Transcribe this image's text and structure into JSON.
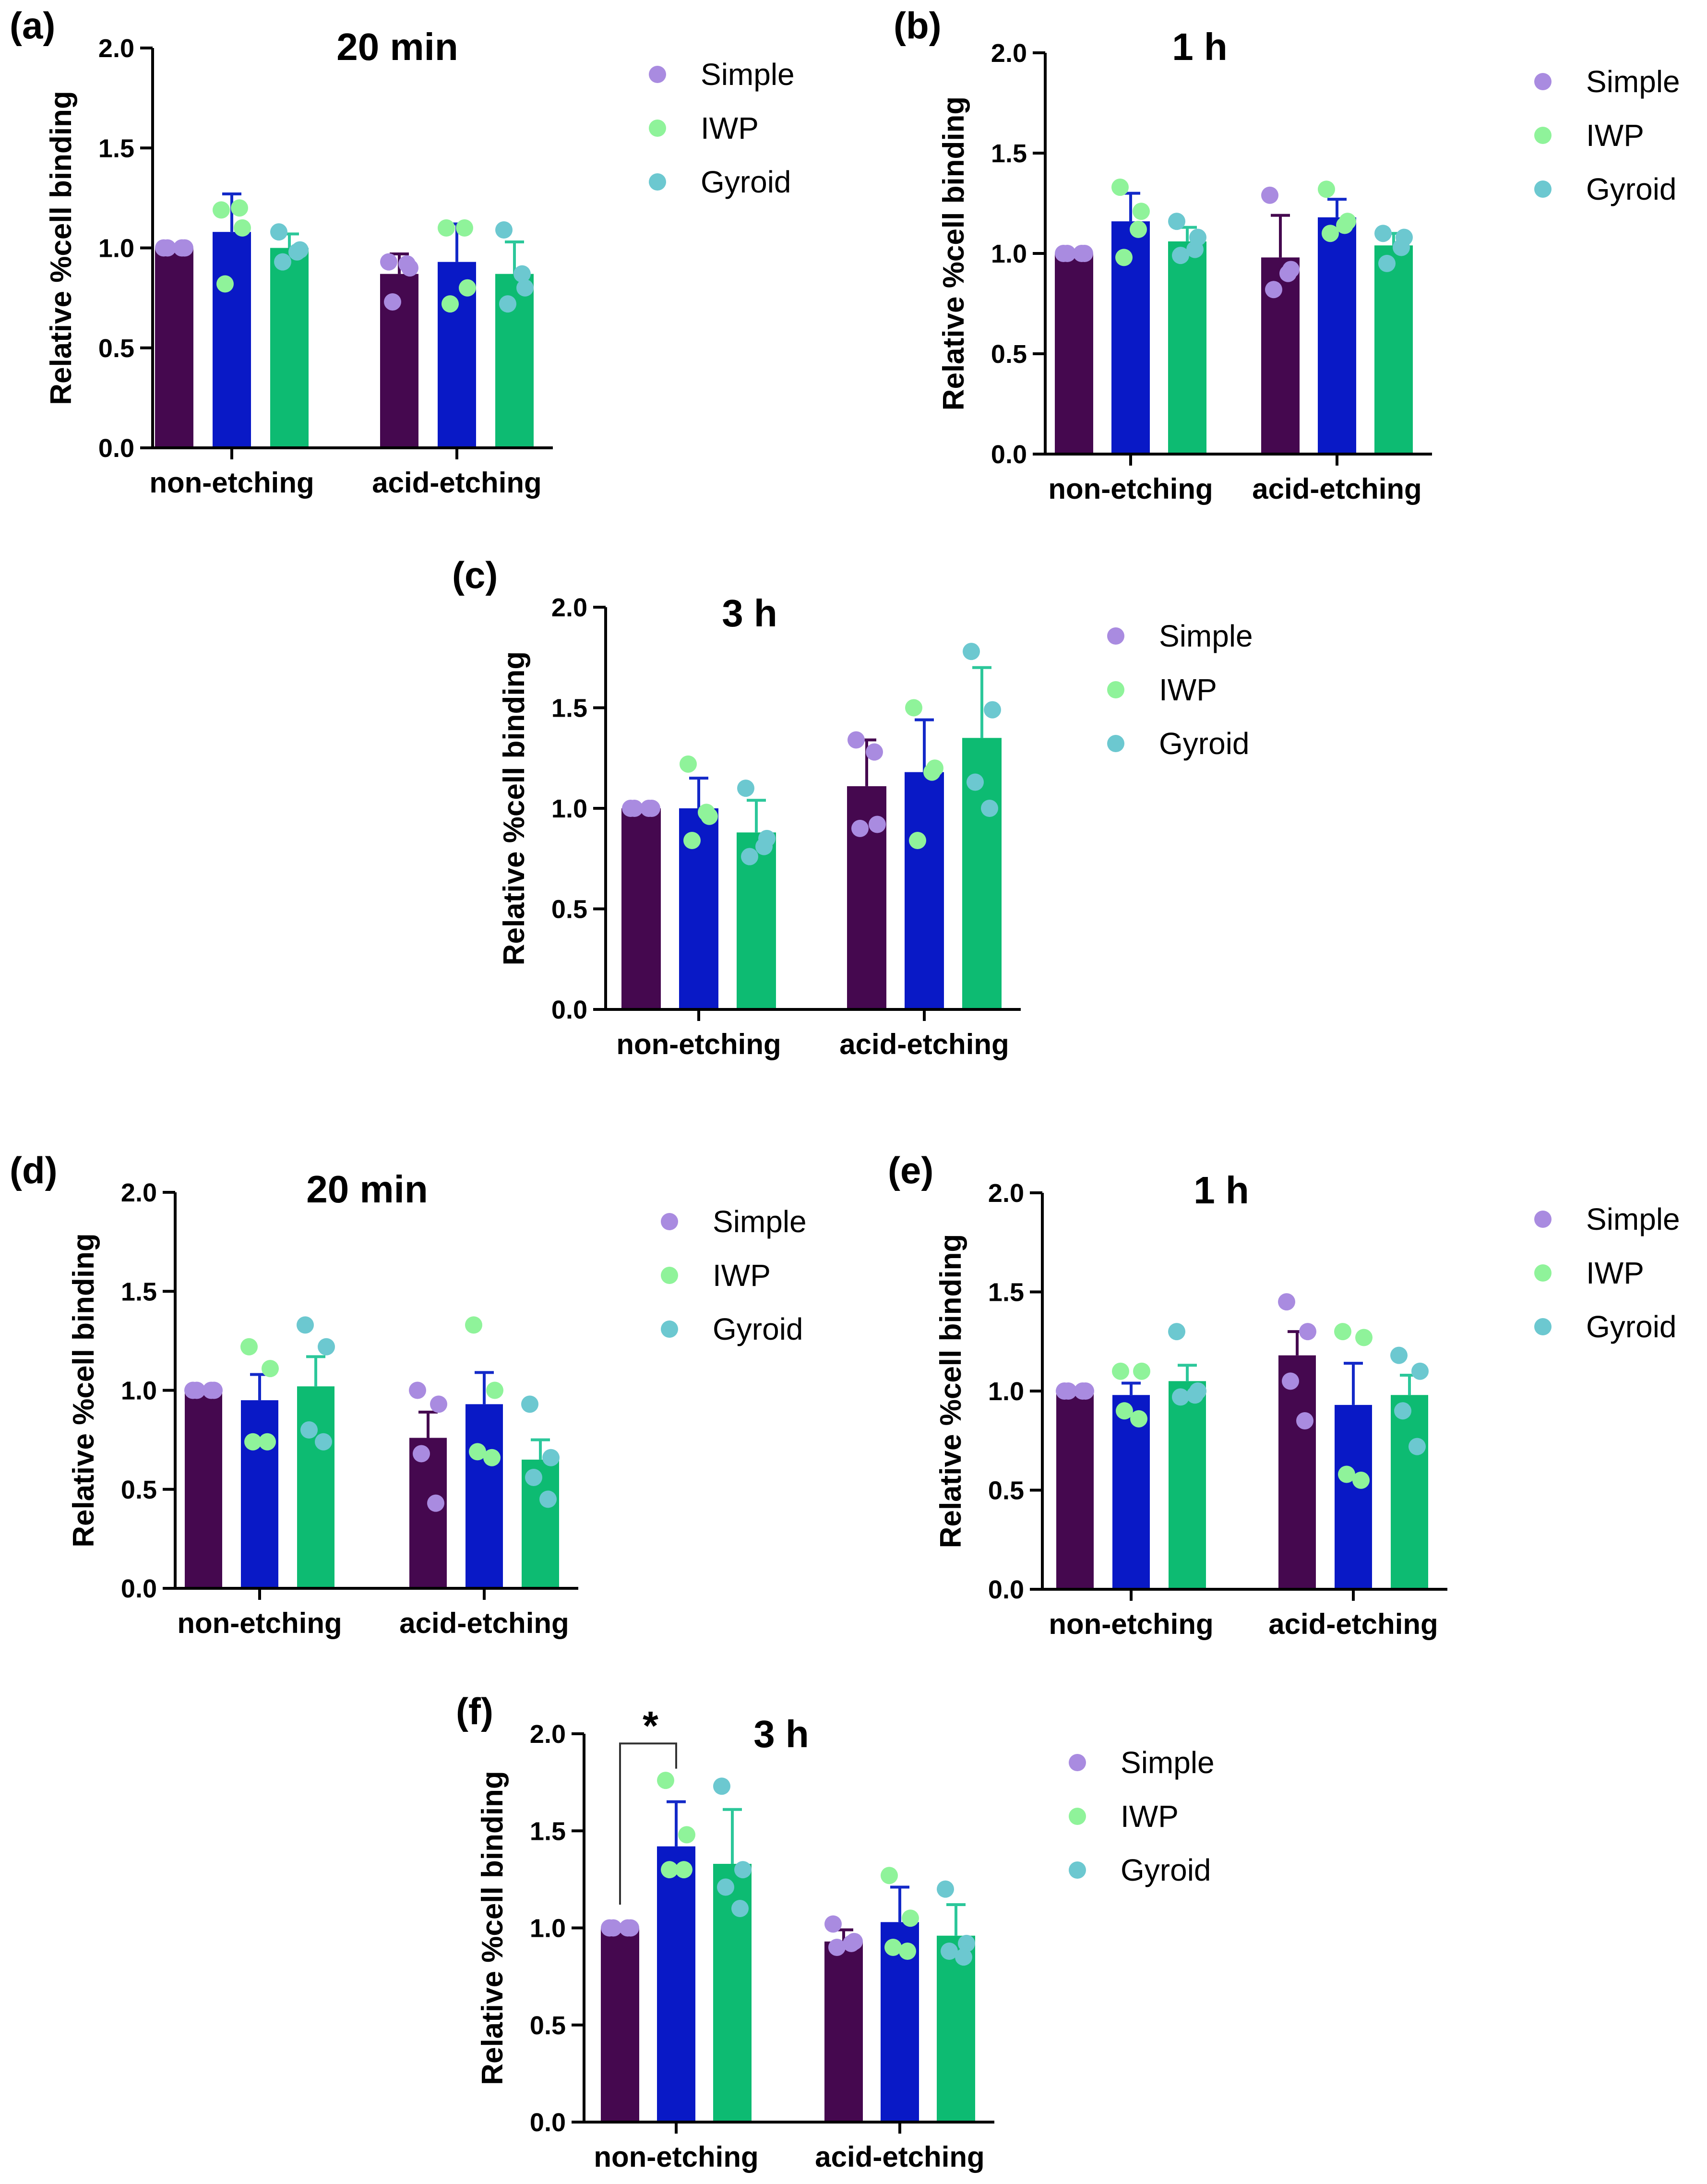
{
  "chart_data": [
    {
      "type": "bar",
      "panel": "(a)",
      "title": "20 min",
      "ylabel": "Relative %cell binding",
      "xlabel": "",
      "ylim": [
        0,
        2.0
      ],
      "yticks": [
        "0.0",
        "0.5",
        "1.0",
        "1.5",
        "2.0"
      ],
      "categories": [
        "non-etching",
        "acid-etching"
      ],
      "series": [
        {
          "name": "Simple",
          "values": [
            1.0,
            0.87
          ],
          "errors": [
            0.0,
            0.1
          ],
          "points": [
            [
              1.0,
              1.0,
              1.0,
              1.0
            ],
            [
              0.93,
              0.9,
              0.73,
              0.92
            ]
          ]
        },
        {
          "name": "IWP",
          "values": [
            1.08,
            0.93
          ],
          "errors": [
            0.19,
            0.19
          ],
          "points": [
            [
              1.19,
              1.1,
              0.82,
              1.2
            ],
            [
              1.1,
              0.8,
              0.72,
              1.1
            ]
          ]
        },
        {
          "name": "Gyroid",
          "values": [
            1.0,
            0.87
          ],
          "errors": [
            0.07,
            0.16
          ],
          "points": [
            [
              1.08,
              0.99,
              0.93,
              0.98
            ],
            [
              1.09,
              0.8,
              0.72,
              0.87
            ]
          ]
        }
      ],
      "significance": []
    },
    {
      "type": "bar",
      "panel": "(b)",
      "title": "1 h",
      "ylabel": "Relative %cell binding",
      "xlabel": "",
      "ylim": [
        0,
        2.0
      ],
      "yticks": [
        "0.0",
        "0.5",
        "1.0",
        "1.5",
        "2.0"
      ],
      "categories": [
        "non-etching",
        "acid-etching"
      ],
      "series": [
        {
          "name": "Simple",
          "values": [
            1.0,
            0.98
          ],
          "errors": [
            0.0,
            0.21
          ],
          "points": [
            [
              1.0,
              1.0,
              1.0,
              1.0
            ],
            [
              1.29,
              0.92,
              0.82,
              0.9
            ]
          ]
        },
        {
          "name": "IWP",
          "values": [
            1.16,
            1.18
          ],
          "errors": [
            0.14,
            0.09
          ],
          "points": [
            [
              1.33,
              1.21,
              0.98,
              1.12
            ],
            [
              1.32,
              1.16,
              1.1,
              1.14
            ]
          ]
        },
        {
          "name": "Gyroid",
          "values": [
            1.06,
            1.04
          ],
          "errors": [
            0.07,
            0.06
          ],
          "points": [
            [
              1.16,
              1.08,
              0.99,
              1.02
            ],
            [
              1.1,
              1.08,
              0.95,
              1.03
            ]
          ]
        }
      ],
      "significance": []
    },
    {
      "type": "bar",
      "panel": "(c)",
      "title": "3 h",
      "ylabel": "Relative %cell binding",
      "xlabel": "",
      "ylim": [
        0,
        2.0
      ],
      "yticks": [
        "0.0",
        "0.5",
        "1.0",
        "1.5",
        "2.0"
      ],
      "categories": [
        "non-etching",
        "acid-etching"
      ],
      "series": [
        {
          "name": "Simple",
          "values": [
            1.0,
            1.11
          ],
          "errors": [
            0.0,
            0.23
          ],
          "points": [
            [
              1.0,
              1.0,
              1.0,
              1.0
            ],
            [
              1.34,
              0.92,
              0.9,
              1.28
            ]
          ]
        },
        {
          "name": "IWP",
          "values": [
            1.0,
            1.18
          ],
          "errors": [
            0.15,
            0.26
          ],
          "points": [
            [
              1.22,
              0.96,
              0.84,
              0.98
            ],
            [
              1.5,
              1.2,
              0.84,
              1.18
            ]
          ]
        },
        {
          "name": "Gyroid",
          "values": [
            0.88,
            1.35
          ],
          "errors": [
            0.16,
            0.35
          ],
          "points": [
            [
              1.1,
              0.85,
              0.76,
              0.81
            ],
            [
              1.78,
              1.49,
              1.13,
              1.0
            ]
          ]
        }
      ],
      "significance": []
    },
    {
      "type": "bar",
      "panel": "(d)",
      "title": "20 min",
      "ylabel": "Relative %cell binding",
      "xlabel": "",
      "ylim": [
        0,
        2.0
      ],
      "yticks": [
        "0.0",
        "0.5",
        "1.0",
        "1.5",
        "2.0"
      ],
      "categories": [
        "non-etching",
        "acid-etching"
      ],
      "series": [
        {
          "name": "Simple",
          "values": [
            1.0,
            0.76
          ],
          "errors": [
            0.0,
            0.13
          ],
          "points": [
            [
              1.0,
              1.0,
              1.0,
              1.0
            ],
            [
              1.0,
              0.93,
              0.68,
              0.43
            ]
          ]
        },
        {
          "name": "IWP",
          "values": [
            0.95,
            0.93
          ],
          "errors": [
            0.13,
            0.16
          ],
          "points": [
            [
              1.22,
              1.11,
              0.74,
              0.74
            ],
            [
              1.33,
              1.0,
              0.69,
              0.66
            ]
          ]
        },
        {
          "name": "Gyroid",
          "values": [
            1.02,
            0.65
          ],
          "errors": [
            0.15,
            0.1
          ],
          "points": [
            [
              1.33,
              1.22,
              0.8,
              0.74
            ],
            [
              0.93,
              0.66,
              0.56,
              0.45
            ]
          ]
        }
      ],
      "significance": []
    },
    {
      "type": "bar",
      "panel": "(e)",
      "title": "1 h",
      "ylabel": "Relative %cell binding",
      "xlabel": "",
      "ylim": [
        0,
        2.0
      ],
      "yticks": [
        "0.0",
        "0.5",
        "1.0",
        "1.5",
        "2.0"
      ],
      "categories": [
        "non-etching",
        "acid-etching"
      ],
      "series": [
        {
          "name": "Simple",
          "values": [
            1.0,
            1.18
          ],
          "errors": [
            0.0,
            0.12
          ],
          "points": [
            [
              1.0,
              1.0,
              1.0,
              1.0
            ],
            [
              1.45,
              1.3,
              1.05,
              0.85
            ]
          ]
        },
        {
          "name": "IWP",
          "values": [
            0.98,
            0.93
          ],
          "errors": [
            0.06,
            0.21
          ],
          "points": [
            [
              1.1,
              1.1,
              0.9,
              0.86
            ],
            [
              1.3,
              1.27,
              0.58,
              0.55
            ]
          ]
        },
        {
          "name": "Gyroid",
          "values": [
            1.05,
            0.98
          ],
          "errors": [
            0.08,
            0.1
          ],
          "points": [
            [
              1.3,
              1.0,
              0.97,
              0.98
            ],
            [
              1.18,
              1.1,
              0.9,
              0.72
            ]
          ]
        }
      ],
      "significance": []
    },
    {
      "type": "bar",
      "panel": "(f)",
      "title": "3 h",
      "ylabel": "Relative %cell binding",
      "xlabel": "",
      "ylim": [
        0,
        2.0
      ],
      "yticks": [
        "0.0",
        "0.5",
        "1.0",
        "1.5",
        "2.0"
      ],
      "categories": [
        "non-etching",
        "acid-etching"
      ],
      "series": [
        {
          "name": "Simple",
          "values": [
            1.0,
            0.93
          ],
          "errors": [
            0.0,
            0.06
          ],
          "points": [
            [
              1.0,
              1.0,
              1.0,
              1.0
            ],
            [
              1.02,
              0.93,
              0.9,
              0.92
            ]
          ]
        },
        {
          "name": "IWP",
          "values": [
            1.42,
            1.03
          ],
          "errors": [
            0.23,
            0.18
          ],
          "points": [
            [
              1.76,
              1.48,
              1.3,
              1.3
            ],
            [
              1.27,
              1.05,
              0.9,
              0.88
            ]
          ]
        },
        {
          "name": "Gyroid",
          "values": [
            1.33,
            0.96
          ],
          "errors": [
            0.28,
            0.16
          ],
          "points": [
            [
              1.73,
              1.3,
              1.21,
              1.1
            ],
            [
              1.2,
              0.92,
              0.88,
              0.85
            ]
          ]
        }
      ],
      "significance": [
        {
          "label": "*",
          "from_series": 0,
          "to_series": 1,
          "category": 0
        }
      ]
    }
  ],
  "colors": {
    "bar_simple": "#45084f",
    "bar_iwp": "#0919c6",
    "bar_gyroid": "#0dbb72",
    "error_simple": "#45084f",
    "error_iwp": "#1329c8",
    "error_gyroid": "#2cc79a",
    "dot_simple": "#a98be0",
    "dot_iwp": "#8ff39a",
    "dot_gyroid": "#6cc8d0",
    "axis": "#000000"
  },
  "icons": {
    "legend_marker": "filled-circle-icon"
  }
}
